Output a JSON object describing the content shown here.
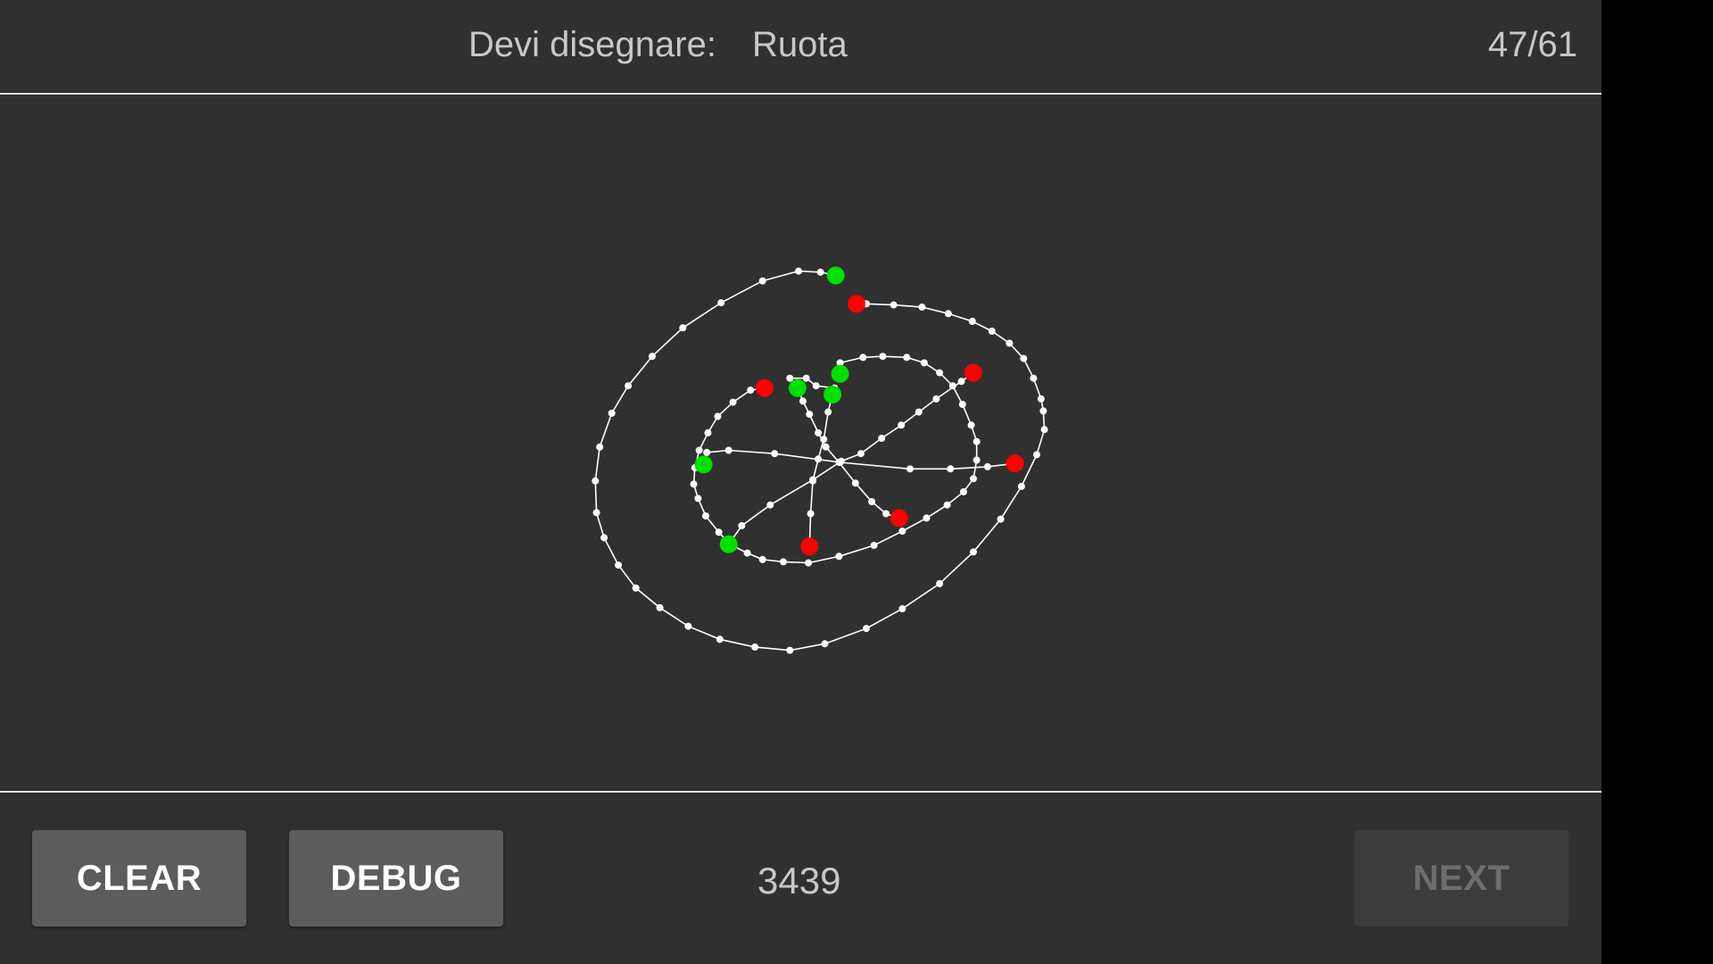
{
  "header": {
    "prompt_label": "Devi disegnare:",
    "prompt_word": "Ruota",
    "progress": "47/61"
  },
  "footer": {
    "clear_label": "CLEAR",
    "debug_label": "DEBUG",
    "score": "3439",
    "next_label": "NEXT"
  },
  "colors": {
    "background": "#303030",
    "stroke": "#ffffff",
    "stroke_start": "#00e000",
    "stroke_end": "#ff0000",
    "text": "#c8c8c8"
  },
  "icons": {}
}
